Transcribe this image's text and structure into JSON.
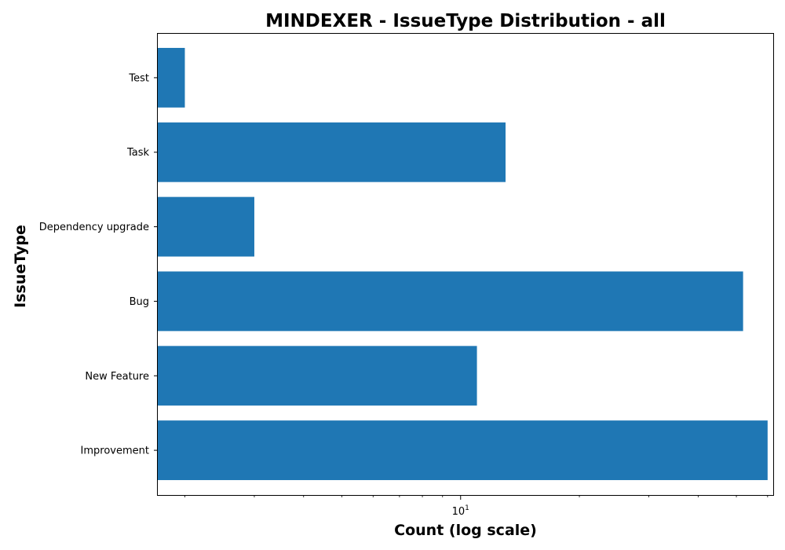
{
  "chart_data": {
    "type": "bar",
    "orientation": "horizontal",
    "title": "MINDEXER - IssueType Distribution - all",
    "xlabel": "Count (log scale)",
    "ylabel": "IssueType",
    "x_scale": "log",
    "x_ticks": [
      {
        "value": 10,
        "base": "10",
        "exponent": "1"
      }
    ],
    "categories": [
      "Improvement",
      "New Feature",
      "Bug",
      "Dependency upgrade",
      "Task",
      "Test"
    ],
    "values": [
      60,
      11,
      52,
      3,
      13,
      2
    ],
    "xlim": [
      1.7,
      62
    ],
    "bar_color": "#1f77b4",
    "grid": false,
    "legend": "none"
  }
}
